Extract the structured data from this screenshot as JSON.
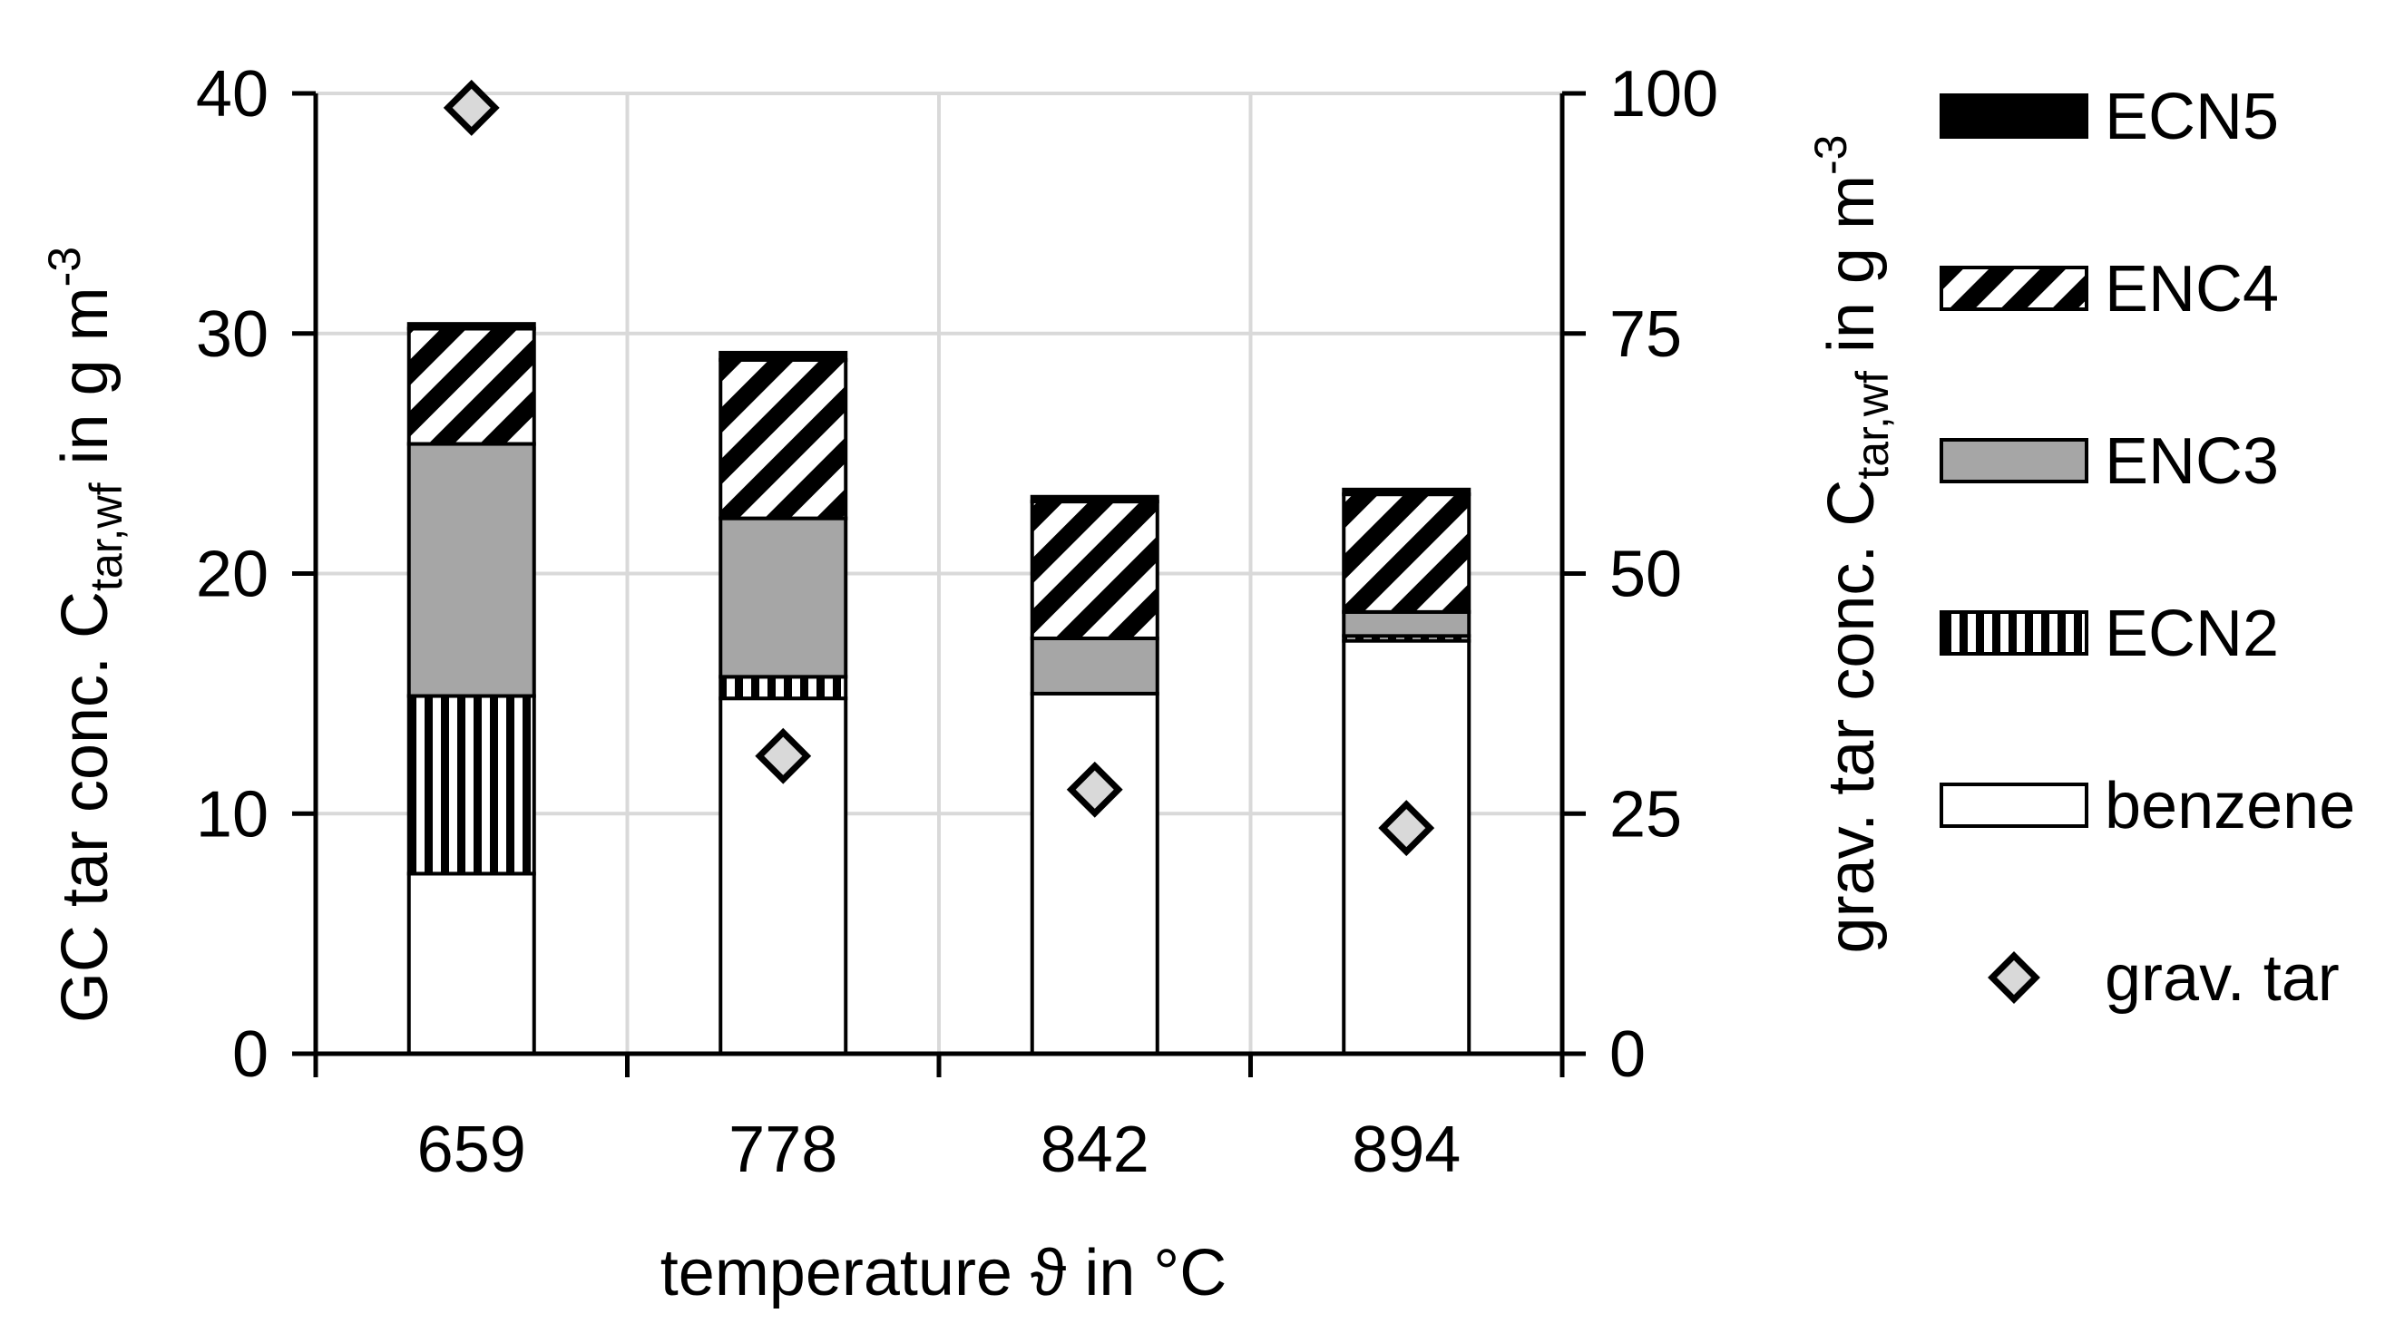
{
  "chart_data": {
    "type": "bar",
    "stacked": true,
    "categories": [
      "659",
      "778",
      "842",
      "894"
    ],
    "xlabel": "temperature ϑ in °C",
    "ylabel_left": {
      "main": "GC tar conc. C",
      "sub": "tar,wf",
      "unit": " in g m",
      "sup": "-3"
    },
    "ylabel_right": {
      "main": "grav. tar conc. C",
      "sub": "tar,wf",
      "unit": " in g m",
      "sup": "-3"
    },
    "ylim_left": [
      0,
      40
    ],
    "yticks_left": [
      "0",
      "10",
      "20",
      "30",
      "40"
    ],
    "ylim_right": [
      0,
      100
    ],
    "yticks_right": [
      "0",
      "25",
      "50",
      "75",
      "100"
    ],
    "grid": true,
    "legend_position": "right",
    "series": [
      {
        "name": "benzene",
        "values": [
          7.5,
          14.8,
          15.0,
          17.2
        ],
        "fill": "#ffffff",
        "pattern": "none"
      },
      {
        "name": "ECN2",
        "values": [
          7.4,
          0.9,
          0.0,
          0.2
        ],
        "fill": "#ffffff",
        "pattern": "vertical"
      },
      {
        "name": "ENC3",
        "values": [
          10.5,
          6.6,
          2.3,
          1.0
        ],
        "fill": "#a6a6a6",
        "pattern": "none"
      },
      {
        "name": "ENC4",
        "values": [
          4.8,
          6.6,
          5.7,
          4.9
        ],
        "fill": "#ffffff",
        "pattern": "diagonal"
      },
      {
        "name": "ECN5",
        "values": [
          0.2,
          0.3,
          0.2,
          0.2
        ],
        "fill": "#000000",
        "pattern": "none"
      }
    ],
    "legend_order": [
      "ECN5",
      "ENC4",
      "ENC3",
      "ECN2",
      "benzene"
    ],
    "scatter_series": {
      "name": "grav. tar",
      "axis": "right",
      "values": [
        98.5,
        31.0,
        27.5,
        23.5
      ],
      "marker": "diamond",
      "fill": "#d9d9d9"
    }
  }
}
